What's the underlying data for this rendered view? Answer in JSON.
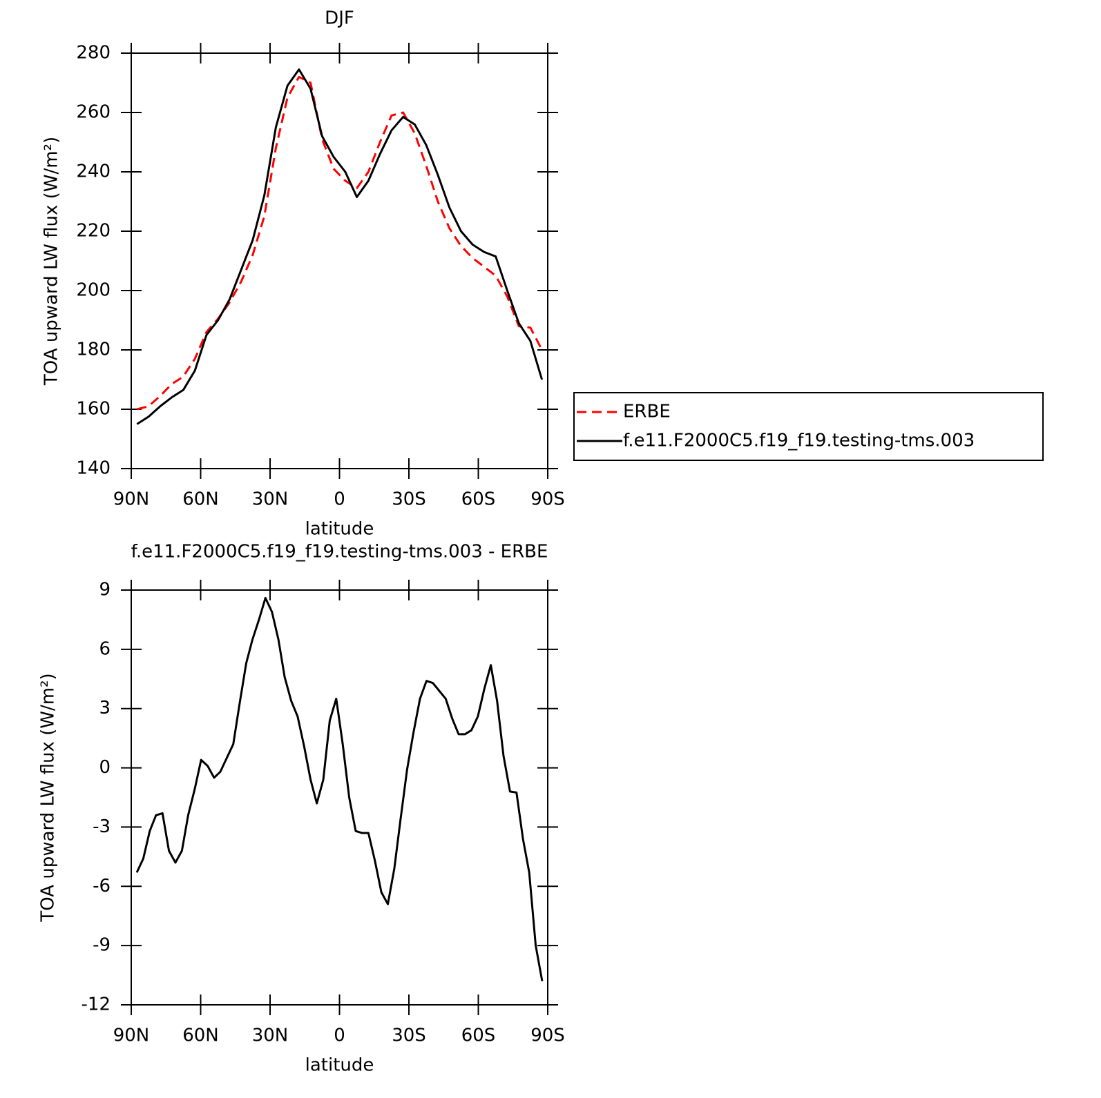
{
  "chart_data": [
    {
      "type": "line",
      "title": "DJF",
      "xlabel": "latitude",
      "ylabel": "TOA upward LW flux (W/m²)",
      "x": [
        87.5,
        82.5,
        77.5,
        72.5,
        67.5,
        62.5,
        57.5,
        52.5,
        47.5,
        42.5,
        37.5,
        32.5,
        27.5,
        22.5,
        17.5,
        12.5,
        7.5,
        2.5,
        -2.5,
        -7.5,
        -12.5,
        -17.5,
        -22.5,
        -27.5,
        -32.5,
        -37.5,
        -42.5,
        -47.5,
        -52.5,
        -57.5,
        -62.5,
        -67.5,
        -72.5,
        -77.5,
        -82.5,
        -87.5
      ],
      "xlim": [
        90,
        -90
      ],
      "xticks": [
        {
          "value": 90,
          "label": "90N"
        },
        {
          "value": 60,
          "label": "60N"
        },
        {
          "value": 30,
          "label": "30N"
        },
        0,
        {
          "value": -30,
          "label": "30S"
        },
        {
          "value": -60,
          "label": "60S"
        },
        {
          "value": -90,
          "label": "90S"
        }
      ],
      "ylim": [
        140,
        280
      ],
      "yticks": [
        140,
        160,
        180,
        200,
        220,
        240,
        260,
        280
      ],
      "legend": "right",
      "series": [
        {
          "name": "ERBE",
          "color": "#ff0000",
          "dash": "dashed",
          "values": [
            160,
            161,
            164.5,
            168.5,
            171,
            177,
            186,
            190.5,
            196,
            203,
            212,
            225,
            248,
            265,
            272,
            270,
            251,
            241,
            237,
            234.5,
            240,
            250,
            259,
            260,
            253,
            242,
            230,
            221,
            215,
            211,
            208,
            205,
            198,
            188,
            187.5,
            180
          ]
        },
        {
          "name": "f.e11.F2000C5.f19_f19.testing-tms.003",
          "color": "#000000",
          "values": [
            155,
            157.5,
            161,
            164,
            166.5,
            173,
            185,
            190,
            197,
            207,
            217,
            232,
            255,
            269,
            274.5,
            268,
            252,
            245,
            240,
            231.5,
            237,
            246,
            254,
            258.5,
            256,
            249,
            239,
            228,
            220,
            215.5,
            213,
            211.5,
            200,
            189,
            183,
            170
          ]
        }
      ]
    },
    {
      "type": "line",
      "title": "f.e11.F2000C5.f19_f19.testing-tms.003 - ERBE",
      "xlabel": "latitude",
      "ylabel": "TOA upward LW flux (W/m²)",
      "x": [
        87.6,
        84.8,
        82.0,
        79.3,
        76.5,
        73.7,
        70.9,
        68.1,
        65.4,
        62.6,
        59.8,
        57.0,
        54.2,
        51.5,
        48.7,
        45.9,
        43.1,
        40.3,
        37.6,
        34.8,
        32.0,
        29.2,
        26.4,
        23.7,
        20.9,
        18.1,
        15.3,
        12.5,
        9.8,
        7.0,
        4.2,
        1.4,
        -1.4,
        -4.2,
        -7.0,
        -9.8,
        -12.5,
        -15.3,
        -18.1,
        -20.9,
        -23.7,
        -26.4,
        -29.2,
        -32.0,
        -34.8,
        -37.6,
        -40.3,
        -43.1,
        -45.9,
        -48.7,
        -51.5,
        -54.2,
        -57.0,
        -59.8,
        -62.6,
        -65.4,
        -68.1,
        -70.9,
        -73.7,
        -76.5,
        -79.3,
        -82.0,
        -84.8,
        -87.6
      ],
      "xlim": [
        90,
        -90
      ],
      "xticks": [
        {
          "value": 90,
          "label": "90N"
        },
        {
          "value": 60,
          "label": "60N"
        },
        {
          "value": 30,
          "label": "30N"
        },
        0,
        {
          "value": -30,
          "label": "30S"
        },
        {
          "value": -60,
          "label": "60S"
        },
        {
          "value": -90,
          "label": "90S"
        }
      ],
      "ylim": [
        -12,
        9
      ],
      "yticks": [
        -12,
        -9,
        -6,
        -3,
        0,
        3,
        6,
        9
      ],
      "series": [
        {
          "color": "#000000",
          "values": [
            -5.3,
            -4.6,
            -3.2,
            -2.4,
            -2.3,
            -4.2,
            -4.8,
            -4.2,
            -2.4,
            -1.1,
            0.4,
            0.1,
            -0.5,
            -0.2,
            0.5,
            1.2,
            3.3,
            5.3,
            6.5,
            7.5,
            8.6,
            7.9,
            6.5,
            4.6,
            3.4,
            2.6,
            1.1,
            -0.6,
            -1.8,
            -0.6,
            2.4,
            3.5,
            1.2,
            -1.5,
            -3.2,
            -3.3,
            -3.3,
            -4.7,
            -6.3,
            -6.9,
            -5.1,
            -2.6,
            -0.1,
            1.8,
            3.5,
            4.4,
            4.3,
            3.9,
            3.5,
            2.5,
            1.7,
            1.7,
            1.9,
            2.6,
            4,
            5.2,
            3.4,
            0.6,
            -1.2,
            -1.25,
            -3.6,
            -5.3,
            -9,
            -10.8
          ]
        }
      ]
    }
  ]
}
